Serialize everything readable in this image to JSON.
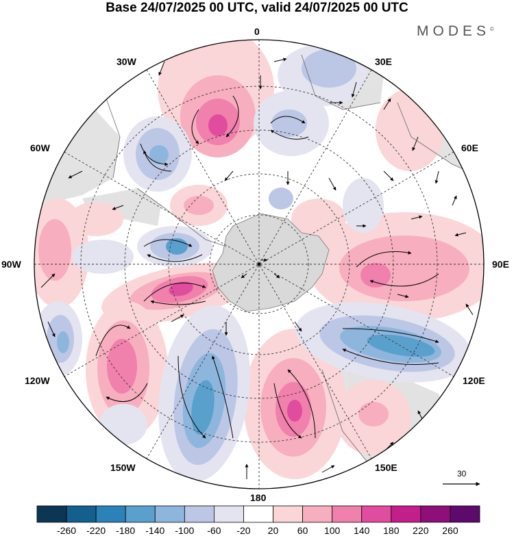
{
  "title": "Base 24/07/2025 00 UTC, valid 24/07/2025 00 UTC",
  "brand": "MODES",
  "brand_mark": "©",
  "longitude_labels": {
    "n0": "0",
    "n30e": "30E",
    "n60e": "60E",
    "n90e": "90E",
    "n120e": "120E",
    "n150e": "150E",
    "n180": "180",
    "n150w": "150W",
    "n120w": "120W",
    "n90w": "90W",
    "n60w": "60W",
    "n30w": "30W"
  },
  "reference_vector": "30",
  "colorbar": {
    "labels": [
      "-260",
      "-220",
      "-180",
      "-140",
      "-100",
      "-60",
      "-20",
      "20",
      "60",
      "100",
      "140",
      "180",
      "220",
      "260"
    ],
    "colors": [
      "#0d3654",
      "#14608c",
      "#2b82b8",
      "#5aa0cc",
      "#8eb6dc",
      "#bcc7e6",
      "#e4e4f1",
      "#ffffff",
      "#fad6d8",
      "#f7aebe",
      "#f080ac",
      "#e04d9e",
      "#c21f8b",
      "#8f0f7a",
      "#5c0a6b"
    ]
  },
  "map": {
    "colors": {
      "land": "#d9d9d9",
      "pink_light": "#fad6d8",
      "pink_mid": "#f7aebe",
      "pink_strong": "#f080ac",
      "pink_core": "#e04d9e",
      "blue_faint": "#e4e4f1",
      "blue_light": "#bcc7e6",
      "blue_mid": "#8eb6dc",
      "blue_strong": "#5aa0cc"
    }
  }
}
